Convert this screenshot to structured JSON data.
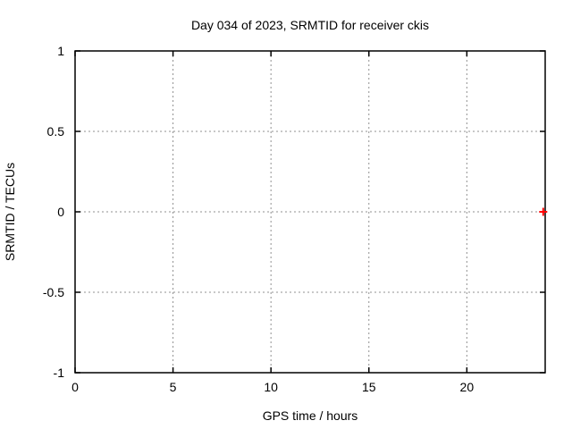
{
  "figure": {
    "background": "#ffffff"
  },
  "chart_data": {
    "type": "scatter",
    "title": "Day 034 of 2023, SRMTID for receiver ckis",
    "xlabel": "GPS time / hours",
    "ylabel": "SRMTID / TECUs",
    "xlim": [
      0,
      24
    ],
    "ylim": [
      -1,
      1
    ],
    "xticks": [
      0,
      5,
      10,
      15,
      20
    ],
    "yticks": [
      -1,
      -0.5,
      0,
      0.5,
      1
    ],
    "grid": true,
    "grid_style": "dashed",
    "legend": "none",
    "series": [
      {
        "name": "SRMTID",
        "marker": "plus",
        "color": "#ff0000",
        "points": [
          {
            "x": 23.9,
            "y": 0
          }
        ]
      }
    ],
    "colors": {
      "axis": "#000000",
      "grid": "#909090",
      "text": "#000000",
      "background": "#ffffff"
    }
  }
}
